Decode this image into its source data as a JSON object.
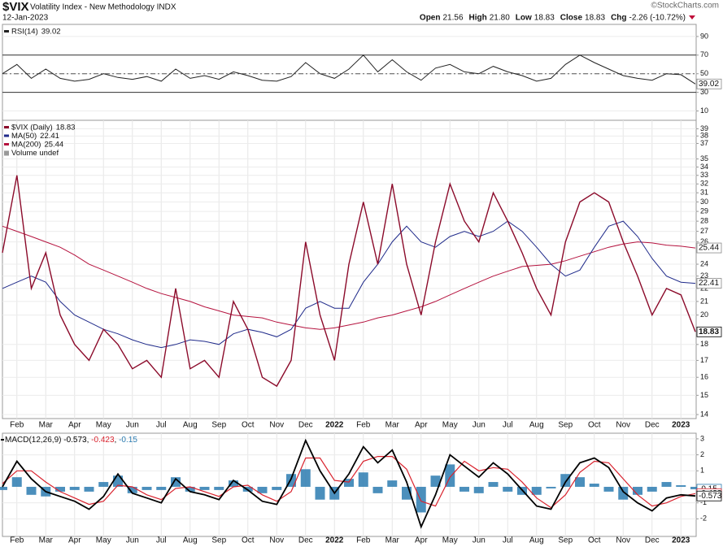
{
  "header": {
    "symbol": "$VIX",
    "name": "Volatility Index - New Methodology INDX",
    "date": "12-Jan-2023",
    "quote": [
      {
        "label": "Open",
        "value": "21.56"
      },
      {
        "label": "High",
        "value": "21.80"
      },
      {
        "label": "Low",
        "value": "18.83"
      },
      {
        "label": "Close",
        "value": "18.83"
      },
      {
        "label": "Chg",
        "value": "-2.26 (-10.72%)"
      }
    ],
    "credit": "©StockCharts.com"
  },
  "chart_data": [
    {
      "type": "line",
      "title": "RSI(14)",
      "ylim": [
        0,
        103
      ],
      "yticks": [
        10,
        30,
        50,
        70,
        90
      ],
      "bands": [
        30,
        70
      ],
      "midline": 50,
      "series": [
        {
          "name": "RSI(14)",
          "color": "#222222",
          "values": [
            50,
            60,
            45,
            55,
            45,
            42,
            44,
            50,
            46,
            44,
            47,
            42,
            55,
            45,
            48,
            44,
            52,
            48,
            43,
            42,
            47,
            62,
            50,
            45,
            55,
            70,
            52,
            65,
            52,
            43,
            56,
            60,
            52,
            50,
            58,
            52,
            48,
            42,
            45,
            60,
            70,
            62,
            55,
            48,
            45,
            43,
            50,
            49,
            39.02
          ]
        }
      ]
    },
    {
      "type": "line",
      "log_scale": true,
      "grid": true,
      "ylim": [
        13.8,
        40.2
      ],
      "yticks": [
        14,
        15,
        16,
        17,
        18,
        20,
        21,
        22,
        23,
        24,
        26,
        27,
        28,
        29,
        30,
        31,
        32,
        33,
        34,
        35,
        37,
        38,
        39
      ],
      "categories": [
        null,
        "Feb",
        null,
        "Mar",
        null,
        "Apr",
        null,
        "May",
        null,
        "Jun",
        null,
        "Jul",
        null,
        "Aug",
        null,
        "Sep",
        null,
        "Oct",
        null,
        "Nov",
        null,
        "Dec",
        null,
        "2022",
        null,
        "Feb",
        null,
        "Mar",
        null,
        "Apr",
        null,
        "May",
        null,
        "Jun",
        null,
        "Jul",
        null,
        "Aug",
        null,
        "Sep",
        null,
        "Oct",
        null,
        "Nov",
        null,
        "Dec",
        null,
        "2023",
        null
      ],
      "volume_label": "Volume undef",
      "series": [
        {
          "name": "$VIX (Daily)",
          "color": "#8b0a2a",
          "values": [
            25,
            33,
            22,
            25,
            20,
            18,
            17,
            19,
            18,
            16.5,
            17,
            16,
            22,
            16.5,
            17,
            16,
            21,
            19,
            16,
            15.5,
            17,
            26,
            20,
            17,
            24,
            30,
            24,
            32,
            24,
            20,
            26,
            32,
            28,
            26,
            31,
            28,
            25,
            22,
            20,
            26,
            30,
            31,
            30,
            26,
            23,
            20,
            22,
            21.5,
            18.83
          ]
        },
        {
          "name": "MA(50)",
          "color": "#1f2a8a",
          "values": [
            22,
            22.5,
            23,
            22.5,
            21,
            20,
            19.5,
            19,
            18.7,
            18.3,
            18,
            17.8,
            18,
            18.3,
            18.2,
            18,
            18.7,
            19,
            18.8,
            18.5,
            19,
            20.5,
            21,
            20.5,
            20.5,
            22.5,
            24,
            26,
            27.5,
            26,
            25.5,
            26.5,
            27,
            26.5,
            27,
            28,
            27,
            25.5,
            24,
            23,
            23.5,
            25.5,
            27.5,
            28,
            26.5,
            24.5,
            23,
            22.5,
            22.41
          ]
        },
        {
          "name": "MA(200)",
          "color": "#b5123e",
          "values": [
            27.5,
            27,
            26.5,
            26,
            25.5,
            24.8,
            24,
            23.5,
            23,
            22.5,
            22,
            21.6,
            21.3,
            21,
            20.6,
            20.3,
            20,
            19.9,
            19.8,
            19.5,
            19.3,
            19.1,
            19,
            19.1,
            19.3,
            19.5,
            19.8,
            20,
            20.3,
            20.6,
            21,
            21.5,
            22,
            22.5,
            23,
            23.4,
            23.8,
            23.9,
            24,
            24.3,
            24.7,
            25.1,
            25.5,
            25.8,
            26,
            25.9,
            25.7,
            25.6,
            25.44
          ]
        }
      ]
    },
    {
      "type": "macd",
      "title": "MACD(12,26,9)",
      "ylim": [
        -3.1,
        3.35
      ],
      "yticks": [
        -2,
        -1,
        1,
        2,
        3
      ],
      "categories": [
        null,
        "Feb",
        null,
        "Mar",
        null,
        "Apr",
        null,
        "May",
        null,
        "Jun",
        null,
        "Jul",
        null,
        "Aug",
        null,
        "Sep",
        null,
        "Oct",
        null,
        "Nov",
        null,
        "Dec",
        null,
        "2022",
        null,
        "Feb",
        null,
        "Mar",
        null,
        "Apr",
        null,
        "May",
        null,
        "Jun",
        null,
        "Jul",
        null,
        "Aug",
        null,
        "Sep",
        null,
        "Oct",
        null,
        "Nov",
        null,
        "Dec",
        null,
        "2023",
        null
      ],
      "series": [
        {
          "name": "MACD",
          "color": "#000000",
          "values": [
            0,
            1.6,
            0.5,
            -0.3,
            -0.6,
            -0.9,
            -1.4,
            -0.6,
            0.8,
            -0.4,
            -0.7,
            -1,
            0.5,
            -0.3,
            -0.5,
            -0.8,
            0.4,
            -0.2,
            -0.9,
            -1.1,
            0.5,
            2.9,
            1,
            -0.4,
            0.8,
            2.5,
            1.5,
            2.3,
            0.3,
            -2.5,
            -0.5,
            2,
            1.3,
            0.6,
            1.5,
            0.8,
            -0.2,
            -1.2,
            -1.4,
            0.3,
            1.5,
            1.8,
            1.2,
            -0.3,
            -1,
            -1.5,
            -0.7,
            -0.5,
            -0.573
          ]
        },
        {
          "name": "Signal",
          "color": "#d9232e",
          "values": [
            0.2,
            1,
            1,
            0.3,
            -0.3,
            -0.7,
            -1.1,
            -0.9,
            0.1,
            0,
            -0.5,
            -0.8,
            -0.1,
            0,
            -0.3,
            -0.6,
            0,
            0.1,
            -0.5,
            -0.9,
            -0.3,
            1.8,
            1.8,
            0.4,
            0.3,
            1.6,
            1.9,
            1.9,
            1.1,
            -0.9,
            -1.2,
            0.6,
            1.6,
            1,
            1.2,
            1.1,
            0.3,
            -0.7,
            -1.3,
            -0.5,
            0.9,
            1.6,
            1.5,
            0.5,
            -0.5,
            -1.2,
            -1,
            -0.6,
            -0.423
          ]
        },
        {
          "name": "Histogram",
          "color": "#2b7bb0",
          "values": [
            -0.2,
            0.6,
            -0.5,
            -0.6,
            -0.3,
            -0.2,
            -0.3,
            0.3,
            0.7,
            -0.4,
            -0.2,
            -0.2,
            0.6,
            -0.3,
            -0.2,
            -0.2,
            0.4,
            -0.3,
            -0.4,
            -0.2,
            0.8,
            1.1,
            -0.8,
            -0.8,
            0.5,
            0.9,
            -0.4,
            0.4,
            -0.8,
            -1.6,
            0.7,
            1.4,
            -0.3,
            -0.4,
            0.3,
            -0.3,
            -0.5,
            -0.5,
            -0.1,
            0.8,
            0.6,
            0.2,
            -0.3,
            -0.8,
            -0.5,
            -0.3,
            0.3,
            0.1,
            -0.15
          ]
        }
      ]
    }
  ]
}
